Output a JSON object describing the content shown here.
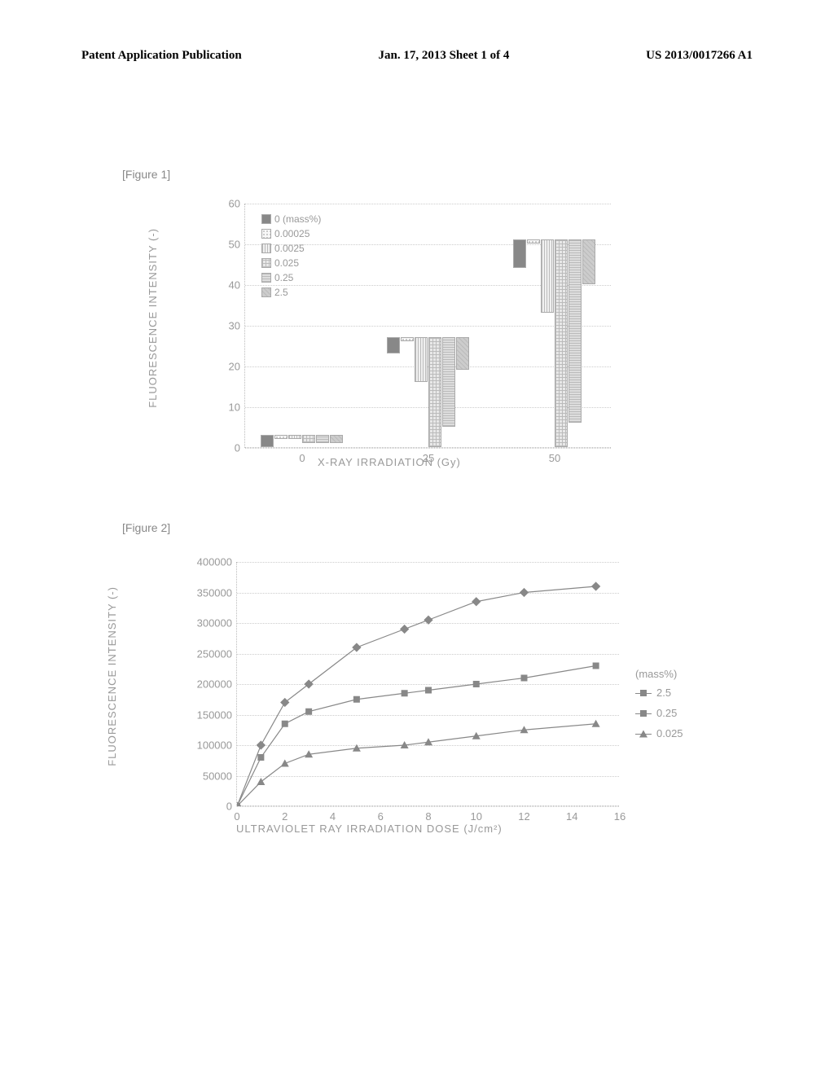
{
  "header": {
    "left": "Patent Application Publication",
    "center": "Jan. 17, 2013  Sheet 1 of 4",
    "right": "US 2013/0017266 A1"
  },
  "fig1_label": "[Figure 1]",
  "fig2_label": "[Figure 2]",
  "page_num": "",
  "chart1": {
    "type": "bar",
    "ylabel": "FLUORESCENCE INTENSITY (-)",
    "xlabel": "X-RAY IRRADIATION (Gy)",
    "ylim": [
      0,
      60
    ],
    "ytick_step": 10,
    "xticks": [
      "0",
      "25",
      "50"
    ],
    "series_names": [
      "0 (mass%)",
      "0.00025",
      "0.0025",
      "0.025",
      "0.25",
      "2.5"
    ],
    "series_fills": [
      "#888888",
      "#f8f8f8",
      "#f0f0f0",
      "#e8e8e8",
      "#dddddd",
      "#cccccc"
    ],
    "series_patterns": [
      "solid",
      "dots",
      "vlines",
      "cross",
      "hlines",
      "diag"
    ],
    "groups": [
      {
        "x": "0",
        "values": [
          3,
          1,
          1,
          2,
          2,
          2
        ]
      },
      {
        "x": "25",
        "values": [
          4,
          1,
          11,
          27,
          22,
          8
        ]
      },
      {
        "x": "50",
        "values": [
          7,
          1,
          18,
          51,
          45,
          11
        ]
      }
    ],
    "grid_color": "#cccccc",
    "text_color": "#999999"
  },
  "chart2": {
    "type": "line",
    "ylabel": "FLUORESCENCE INTENSITY (-)",
    "xlabel": "ULTRAVIOLET RAY IRRADIATION DOSE (J/cm²)",
    "ylim": [
      0,
      400000
    ],
    "ytick_step": 50000,
    "xlim": [
      0,
      16
    ],
    "xtick_step": 2,
    "legend_title": "(mass%)",
    "series": [
      {
        "name": "2.5",
        "marker": "diamond",
        "color": "#888888",
        "points": [
          [
            0,
            0
          ],
          [
            1,
            100000
          ],
          [
            2,
            170000
          ],
          [
            3,
            200000
          ],
          [
            5,
            260000
          ],
          [
            7,
            290000
          ],
          [
            8,
            305000
          ],
          [
            10,
            335000
          ],
          [
            12,
            350000
          ],
          [
            15,
            360000
          ]
        ]
      },
      {
        "name": "0.25",
        "marker": "square",
        "color": "#888888",
        "points": [
          [
            0,
            0
          ],
          [
            1,
            80000
          ],
          [
            2,
            135000
          ],
          [
            3,
            155000
          ],
          [
            5,
            175000
          ],
          [
            7,
            185000
          ],
          [
            8,
            190000
          ],
          [
            10,
            200000
          ],
          [
            12,
            210000
          ],
          [
            15,
            230000
          ]
        ]
      },
      {
        "name": "0.025",
        "marker": "triangle",
        "color": "#888888",
        "points": [
          [
            0,
            0
          ],
          [
            1,
            40000
          ],
          [
            2,
            70000
          ],
          [
            3,
            85000
          ],
          [
            5,
            95000
          ],
          [
            7,
            100000
          ],
          [
            8,
            105000
          ],
          [
            10,
            115000
          ],
          [
            12,
            125000
          ],
          [
            15,
            135000
          ]
        ]
      }
    ],
    "grid_color": "#cccccc",
    "text_color": "#999999"
  }
}
